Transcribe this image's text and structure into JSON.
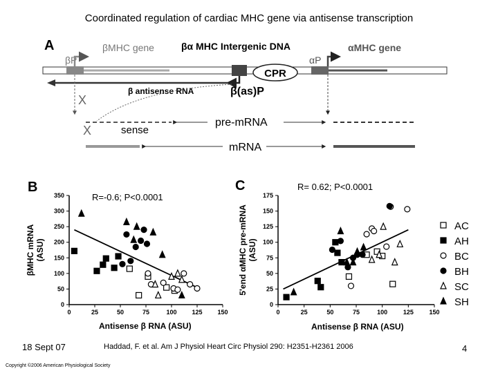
{
  "slide": {
    "title": "Coordinated regulation of cardiac MHC gene via antisense transcription",
    "date": "18 Sept 07",
    "citation": "Haddad, F. et al. Am J Physiol Heart Circ Physiol 290: H2351-H2361 2006",
    "page": "4",
    "copyright": "Copyright ©2006 American Physiological Society"
  },
  "panel_a": {
    "label": "A",
    "beta_gene": "βMHC gene",
    "intergenic": "βα MHC Intergenic DNA",
    "alpha_gene": "αMHC gene",
    "beta_promoter": "βP",
    "alpha_promoter": "αP",
    "cpr": "CPR",
    "antisense_promoter": "β(as)P",
    "antisense_rna": "β antisense RNA",
    "sense": "sense",
    "pre_mrna": "pre-mRNA",
    "mrna": "mRNA",
    "block1": "X",
    "block2": "X"
  },
  "legend": [
    {
      "code": "AC",
      "marker": "open-square"
    },
    {
      "code": "AH",
      "marker": "filled-square"
    },
    {
      "code": "BC",
      "marker": "open-circle"
    },
    {
      "code": "BH",
      "marker": "filled-circle"
    },
    {
      "code": "SC",
      "marker": "open-triangle"
    },
    {
      "code": "SH",
      "marker": "filled-triangle"
    }
  ],
  "chart_data": [
    {
      "type": "scatter",
      "panel": "B",
      "annotation": "R=-0.6; P<0.0001",
      "xlabel": "Antisense β RNA (ASU)",
      "ylabel_line1": "βMHC mRNA",
      "ylabel_line2": "(ASU)",
      "xlim": [
        0,
        150
      ],
      "ylim": [
        0,
        350
      ],
      "xticks": [
        0,
        25,
        50,
        75,
        100,
        125,
        150
      ],
      "yticks": [
        0,
        50,
        100,
        150,
        200,
        250,
        300,
        350
      ],
      "trendline": [
        [
          5,
          240
        ],
        [
          125,
          55
        ]
      ],
      "points": [
        {
          "g": "AC",
          "x": 68,
          "y": 30
        },
        {
          "g": "AC",
          "x": 77,
          "y": 90
        },
        {
          "g": "AC",
          "x": 95,
          "y": 55
        },
        {
          "g": "AC",
          "x": 103,
          "y": 45
        },
        {
          "g": "AC",
          "x": 59,
          "y": 115
        },
        {
          "g": "AH",
          "x": 5,
          "y": 172
        },
        {
          "g": "AH",
          "x": 27,
          "y": 108
        },
        {
          "g": "AH",
          "x": 33,
          "y": 128
        },
        {
          "g": "AH",
          "x": 36,
          "y": 148
        },
        {
          "g": "AH",
          "x": 44,
          "y": 118
        },
        {
          "g": "AH",
          "x": 48,
          "y": 155
        },
        {
          "g": "BC",
          "x": 80,
          "y": 65
        },
        {
          "g": "BC",
          "x": 92,
          "y": 70
        },
        {
          "g": "BC",
          "x": 102,
          "y": 52
        },
        {
          "g": "BC",
          "x": 106,
          "y": 48
        },
        {
          "g": "BC",
          "x": 112,
          "y": 100
        },
        {
          "g": "BC",
          "x": 118,
          "y": 65
        },
        {
          "g": "BC",
          "x": 125,
          "y": 52
        },
        {
          "g": "BC",
          "x": 77,
          "y": 100
        },
        {
          "g": "BH",
          "x": 52,
          "y": 130
        },
        {
          "g": "BH",
          "x": 56,
          "y": 225
        },
        {
          "g": "BH",
          "x": 60,
          "y": 140
        },
        {
          "g": "BH",
          "x": 65,
          "y": 185
        },
        {
          "g": "BH",
          "x": 70,
          "y": 205
        },
        {
          "g": "BH",
          "x": 73,
          "y": 240
        },
        {
          "g": "BH",
          "x": 76,
          "y": 195
        },
        {
          "g": "SC",
          "x": 84,
          "y": 65
        },
        {
          "g": "SC",
          "x": 87,
          "y": 30
        },
        {
          "g": "SC",
          "x": 100,
          "y": 90
        },
        {
          "g": "SC",
          "x": 106,
          "y": 100
        },
        {
          "g": "SC",
          "x": 110,
          "y": 80
        },
        {
          "g": "SH",
          "x": 12,
          "y": 292
        },
        {
          "g": "SH",
          "x": 56,
          "y": 265
        },
        {
          "g": "SH",
          "x": 63,
          "y": 208
        },
        {
          "g": "SH",
          "x": 66,
          "y": 250
        },
        {
          "g": "SH",
          "x": 82,
          "y": 232
        },
        {
          "g": "SH",
          "x": 91,
          "y": 160
        },
        {
          "g": "SH",
          "x": 110,
          "y": 30
        }
      ]
    },
    {
      "type": "scatter",
      "panel": "C",
      "annotation": "R= 0.62; P<0.0001",
      "xlabel": "Antisense β RNA (ASU)",
      "ylabel_line1": "5'end αMHC pre-mRNA",
      "ylabel_line2": "(ASU)",
      "xlim": [
        0,
        150
      ],
      "ylim": [
        0,
        175
      ],
      "xticks": [
        0,
        25,
        50,
        75,
        100,
        125,
        150
      ],
      "yticks": [
        0,
        25,
        50,
        75,
        100,
        125,
        150,
        175
      ],
      "trendline": [
        [
          5,
          25
        ],
        [
          125,
          120
        ]
      ],
      "points": [
        {
          "g": "AC",
          "x": 85,
          "y": 80
        },
        {
          "g": "AC",
          "x": 100,
          "y": 78
        },
        {
          "g": "AC",
          "x": 110,
          "y": 33
        },
        {
          "g": "AC",
          "x": 68,
          "y": 45
        },
        {
          "g": "AC",
          "x": 95,
          "y": 85
        },
        {
          "g": "AH",
          "x": 8,
          "y": 12
        },
        {
          "g": "AH",
          "x": 38,
          "y": 38
        },
        {
          "g": "AH",
          "x": 41,
          "y": 28
        },
        {
          "g": "AH",
          "x": 57,
          "y": 83
        },
        {
          "g": "AH",
          "x": 61,
          "y": 68
        },
        {
          "g": "AH",
          "x": 55,
          "y": 100
        },
        {
          "g": "BC",
          "x": 85,
          "y": 113
        },
        {
          "g": "BC",
          "x": 90,
          "y": 122
        },
        {
          "g": "BC",
          "x": 92,
          "y": 118
        },
        {
          "g": "BC",
          "x": 108,
          "y": 157
        },
        {
          "g": "BC",
          "x": 124,
          "y": 153
        },
        {
          "g": "BC",
          "x": 104,
          "y": 93
        },
        {
          "g": "BC",
          "x": 70,
          "y": 30
        },
        {
          "g": "BH",
          "x": 52,
          "y": 88
        },
        {
          "g": "BH",
          "x": 60,
          "y": 102
        },
        {
          "g": "BH",
          "x": 67,
          "y": 60
        },
        {
          "g": "BH",
          "x": 72,
          "y": 75
        },
        {
          "g": "BH",
          "x": 76,
          "y": 80
        },
        {
          "g": "BH",
          "x": 107,
          "y": 158
        },
        {
          "g": "BH",
          "x": 81,
          "y": 80
        },
        {
          "g": "SC",
          "x": 90,
          "y": 72
        },
        {
          "g": "SC",
          "x": 97,
          "y": 80
        },
        {
          "g": "SC",
          "x": 101,
          "y": 125
        },
        {
          "g": "SC",
          "x": 112,
          "y": 68
        },
        {
          "g": "SC",
          "x": 117,
          "y": 97
        },
        {
          "g": "SH",
          "x": 15,
          "y": 20
        },
        {
          "g": "SH",
          "x": 60,
          "y": 118
        },
        {
          "g": "SH",
          "x": 66,
          "y": 68
        },
        {
          "g": "SH",
          "x": 72,
          "y": 68
        },
        {
          "g": "SH",
          "x": 76,
          "y": 85
        },
        {
          "g": "SH",
          "x": 82,
          "y": 92
        }
      ]
    }
  ]
}
